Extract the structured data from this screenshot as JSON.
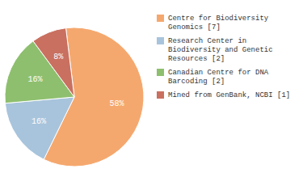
{
  "chart_data": {
    "type": "pie",
    "categories": [
      "Centre for Biodiversity\nGenomics [7]",
      "Research Center in\nBiodiversity and Genetic\nResources [2]",
      "Canadian Centre for DNA\nBarcoding [2]",
      "Mined from GenBank, NCBI [1]"
    ],
    "values": [
      58,
      16,
      16,
      8
    ],
    "value_labels": [
      "58%",
      "16%",
      "16%",
      "8%"
    ],
    "colors": [
      "#F5A86E",
      "#A8C4DC",
      "#8EBF6E",
      "#C97060"
    ],
    "data_labels": true,
    "legend": "right"
  }
}
